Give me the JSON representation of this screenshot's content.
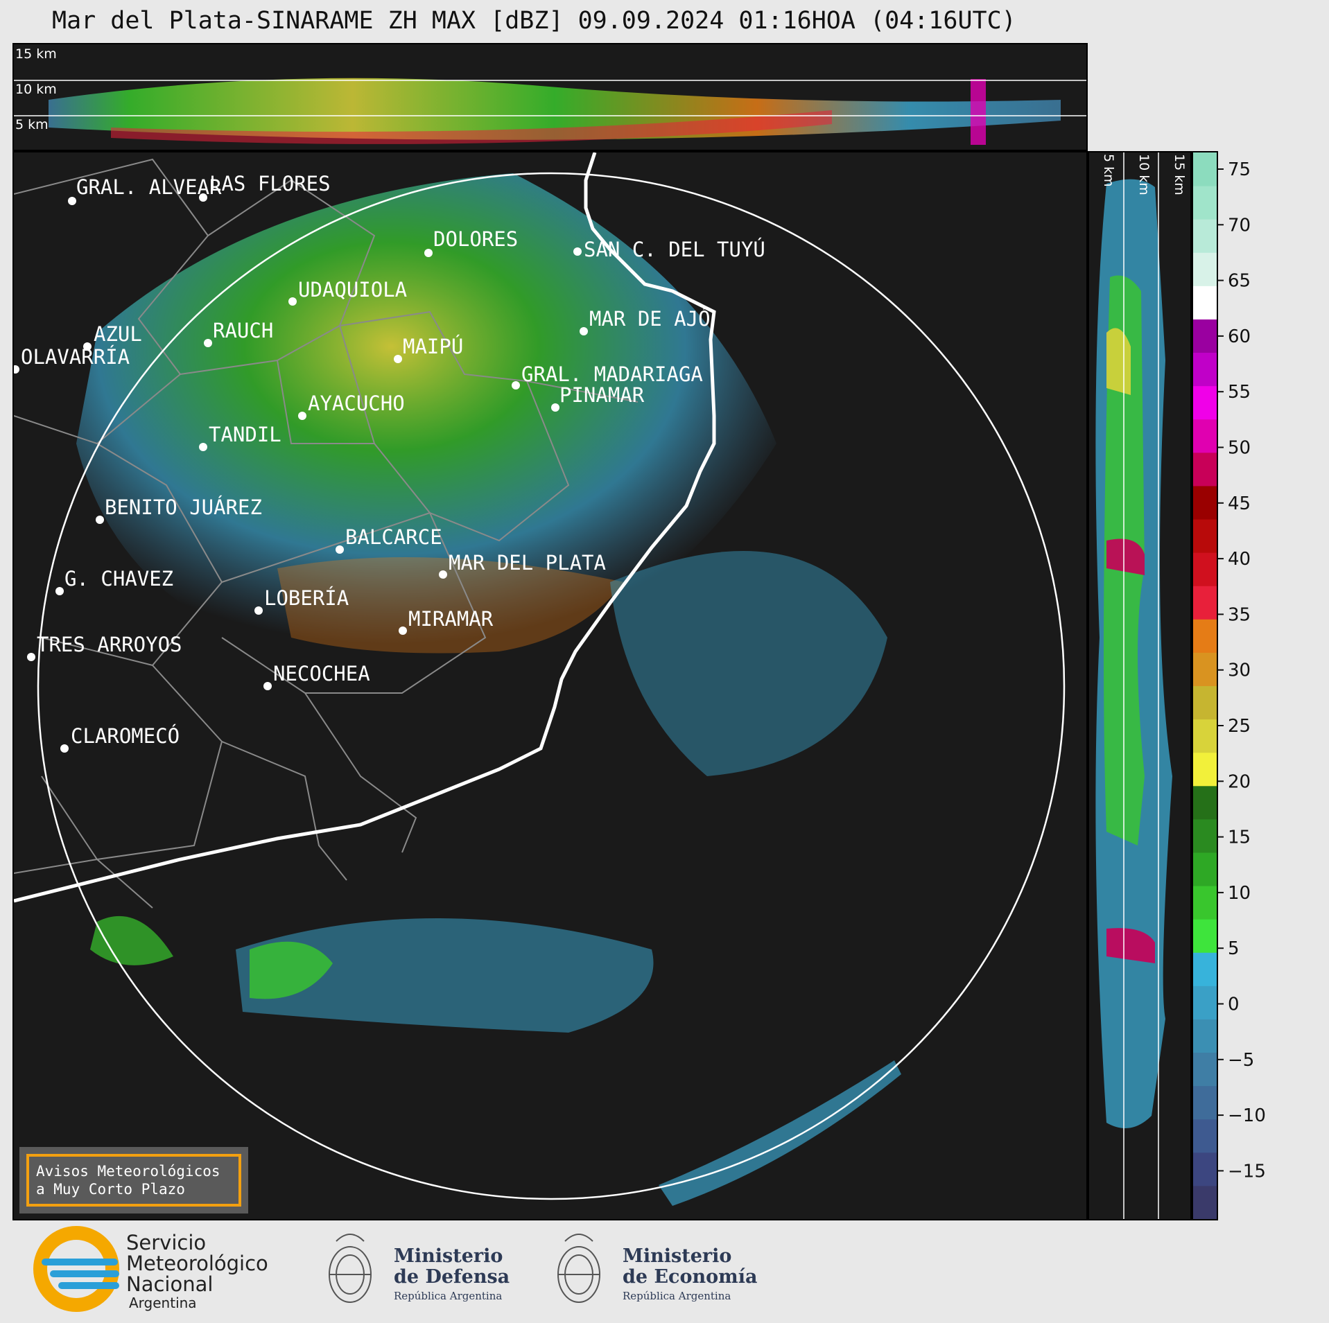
{
  "title": "Mar del Plata-SINARAME ZH MAX [dBZ] 09.09.2024 01:16HOA (04:16UTC)",
  "top_panel": {
    "labels": [
      "15 km",
      "10 km",
      "5 km"
    ]
  },
  "side_panel": {
    "labels": [
      "5 km",
      "10 km",
      "15 km"
    ]
  },
  "colorbar": {
    "ticks": [
      "75",
      "70",
      "65",
      "60",
      "55",
      "50",
      "45",
      "40",
      "35",
      "30",
      "25",
      "20",
      "15",
      "10",
      "5",
      "0",
      "−5",
      "−10",
      "−15"
    ],
    "colors": [
      "#3a3a6a",
      "#3c4680",
      "#3e5a90",
      "#3f6c9a",
      "#3f7ea5",
      "#3b8fb3",
      "#3aa0c6",
      "#37b3db",
      "#3ee43c",
      "#39c62d",
      "#2ea825",
      "#2a8a20",
      "#257018",
      "#f2f03a",
      "#d8d33a",
      "#c6b530",
      "#d99320",
      "#e57c16",
      "#e8203a",
      "#d0101e",
      "#b80a0a",
      "#9a0000",
      "#c80058",
      "#e000b0",
      "#f000e8",
      "#c000c8",
      "#9a00a0",
      "#ffffff",
      "#d8f2e8",
      "#b8ead8",
      "#a0e4ca",
      "#8cdcbe"
    ]
  },
  "cities": [
    {
      "name": "GRAL. ALVEAR"
    },
    {
      "name": "LAS FLORES"
    },
    {
      "name": "DOLORES"
    },
    {
      "name": "SAN C. DEL TUYÚ"
    },
    {
      "name": "UDAQUIOLA"
    },
    {
      "name": "MAR DE AJÓ"
    },
    {
      "name": "AZUL"
    },
    {
      "name": "RAUCH"
    },
    {
      "name": "OLAVARRÍA"
    },
    {
      "name": "MAIPÚ"
    },
    {
      "name": "GRAL. MADARIAGA"
    },
    {
      "name": "PINAMAR"
    },
    {
      "name": "AYACUCHO"
    },
    {
      "name": "TANDIL"
    },
    {
      "name": "BENITO JUÁREZ"
    },
    {
      "name": "BALCARCE"
    },
    {
      "name": "MAR DEL PLATA"
    },
    {
      "name": "G. CHAVEZ"
    },
    {
      "name": "LOBERÍA"
    },
    {
      "name": "MIRAMAR"
    },
    {
      "name": "TRES ARROYOS"
    },
    {
      "name": "NECOCHEA"
    },
    {
      "name": "CLAROMECÓ"
    }
  ],
  "avisos": {
    "line1": "Avisos Meteorológicos",
    "line2": "a Muy Corto Plazo"
  },
  "footer": {
    "smn": {
      "line1": "Servicio",
      "line2": "Meteorológico",
      "line3": "Nacional",
      "line4": "Argentina"
    },
    "defensa": {
      "line1": "Ministerio",
      "line2": "de Defensa",
      "line3": "República Argentina"
    },
    "economia": {
      "line1": "Ministerio",
      "line2": "de Economía",
      "line3": "República Argentina"
    }
  }
}
